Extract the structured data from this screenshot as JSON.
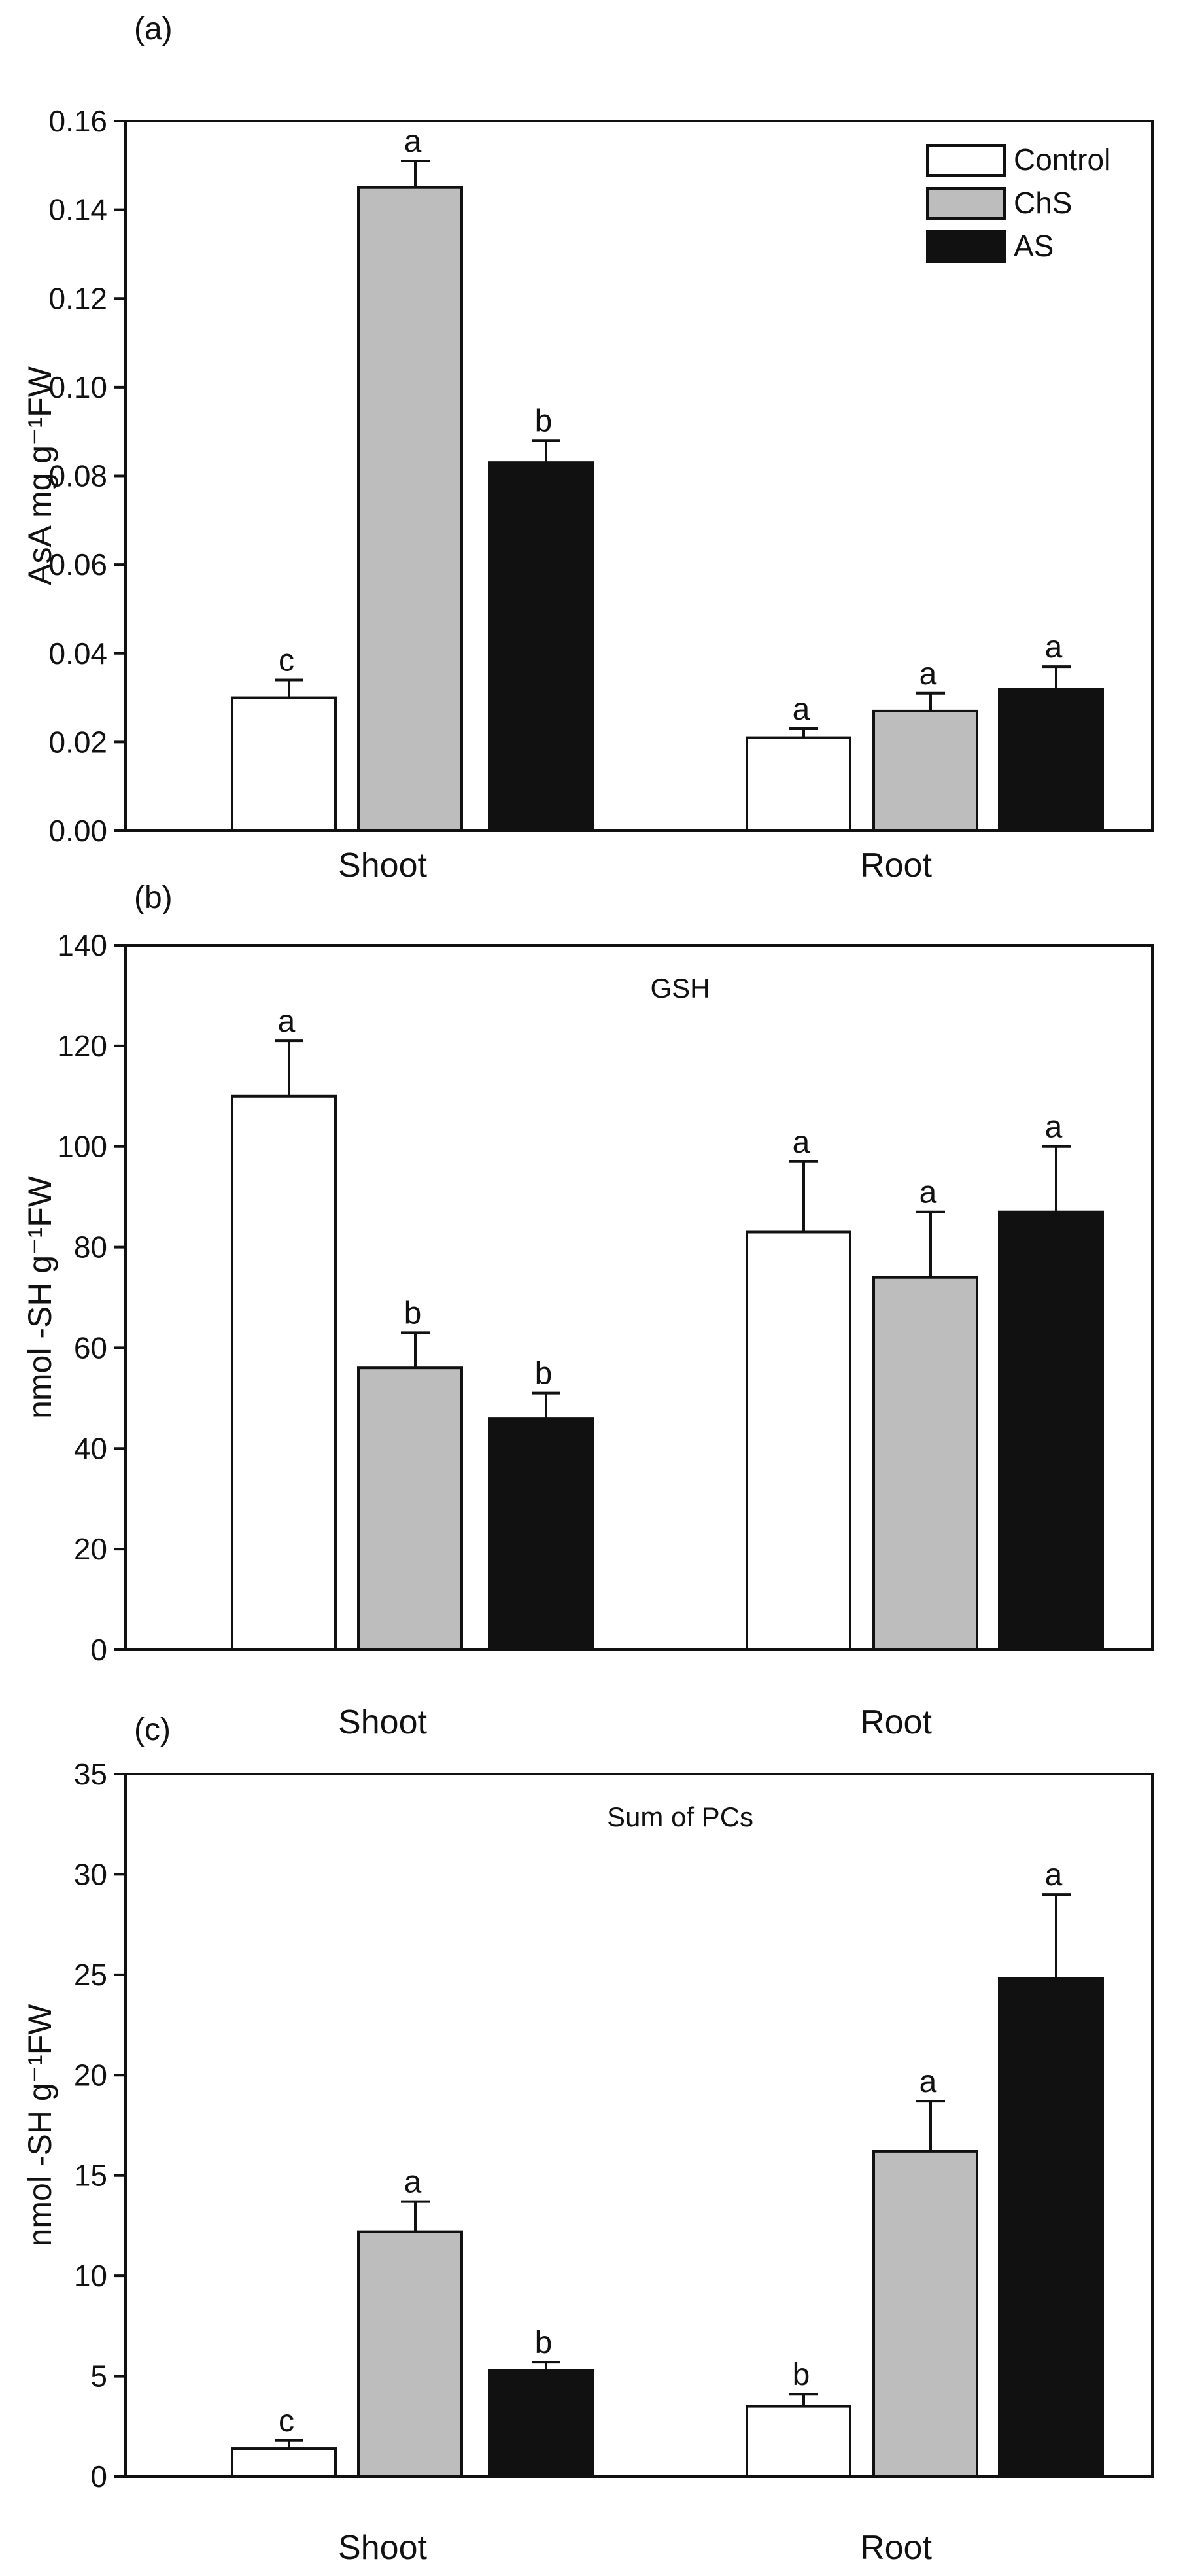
{
  "figure": {
    "series": [
      {
        "name": "Control",
        "color": "#ffffff"
      },
      {
        "name": "ChS",
        "color": "#bdbdbd"
      },
      {
        "name": "AS",
        "color": "#111111"
      }
    ]
  },
  "chart_data": [
    {
      "type": "bar",
      "panel_label": "(a)",
      "title": "",
      "ylabel": "AsA mg g⁻¹FW",
      "ylim": [
        0,
        0.16
      ],
      "yticks": [
        "0.00",
        "0.02",
        "0.04",
        "0.06",
        "0.08",
        "0.10",
        "0.12",
        "0.14",
        "0.16"
      ],
      "ytick_values": [
        0,
        0.02,
        0.04,
        0.06,
        0.08,
        0.1,
        0.12,
        0.14,
        0.16
      ],
      "categories": [
        "Shoot",
        "Root"
      ],
      "legend": "top-right",
      "series": [
        {
          "name": "Control",
          "values": [
            0.03,
            0.021
          ],
          "errors": [
            0.004,
            0.002
          ],
          "letters": [
            "c",
            "a"
          ]
        },
        {
          "name": "ChS",
          "values": [
            0.145,
            0.027
          ],
          "errors": [
            0.006,
            0.004
          ],
          "letters": [
            "a",
            "a"
          ]
        },
        {
          "name": "AS",
          "values": [
            0.083,
            0.032
          ],
          "errors": [
            0.005,
            0.005
          ],
          "letters": [
            "b",
            "a"
          ]
        }
      ]
    },
    {
      "type": "bar",
      "panel_label": "(b)",
      "title": "GSH",
      "ylabel": "nmol -SH g⁻¹FW",
      "ylim": [
        0,
        140
      ],
      "yticks": [
        "0",
        "20",
        "40",
        "60",
        "80",
        "100",
        "120",
        "140"
      ],
      "ytick_values": [
        0,
        20,
        40,
        60,
        80,
        100,
        120,
        140
      ],
      "categories": [
        "Shoot",
        "Root"
      ],
      "series": [
        {
          "name": "Control",
          "values": [
            110,
            83
          ],
          "errors": [
            11,
            14
          ],
          "letters": [
            "a",
            "a"
          ]
        },
        {
          "name": "ChS",
          "values": [
            56,
            74
          ],
          "errors": [
            7,
            13
          ],
          "letters": [
            "b",
            "a"
          ]
        },
        {
          "name": "AS",
          "values": [
            46,
            87
          ],
          "errors": [
            5,
            13
          ],
          "letters": [
            "b",
            "a"
          ]
        }
      ]
    },
    {
      "type": "bar",
      "panel_label": "(c)",
      "title": "Sum of PCs",
      "ylabel": "nmol -SH g⁻¹FW",
      "ylim": [
        0,
        35
      ],
      "yticks": [
        "0",
        "5",
        "10",
        "15",
        "20",
        "25",
        "30",
        "35"
      ],
      "ytick_values": [
        0,
        5,
        10,
        15,
        20,
        25,
        30,
        35
      ],
      "categories": [
        "Shoot",
        "Root"
      ],
      "series": [
        {
          "name": "Control",
          "values": [
            1.4,
            3.5
          ],
          "errors": [
            0.4,
            0.6
          ],
          "letters": [
            "c",
            "b"
          ]
        },
        {
          "name": "ChS",
          "values": [
            12.2,
            16.2
          ],
          "errors": [
            1.5,
            2.5
          ],
          "letters": [
            "a",
            "a"
          ]
        },
        {
          "name": "AS",
          "values": [
            5.3,
            24.8
          ],
          "errors": [
            0.4,
            4.2
          ],
          "letters": [
            "b",
            "a"
          ]
        }
      ]
    }
  ]
}
